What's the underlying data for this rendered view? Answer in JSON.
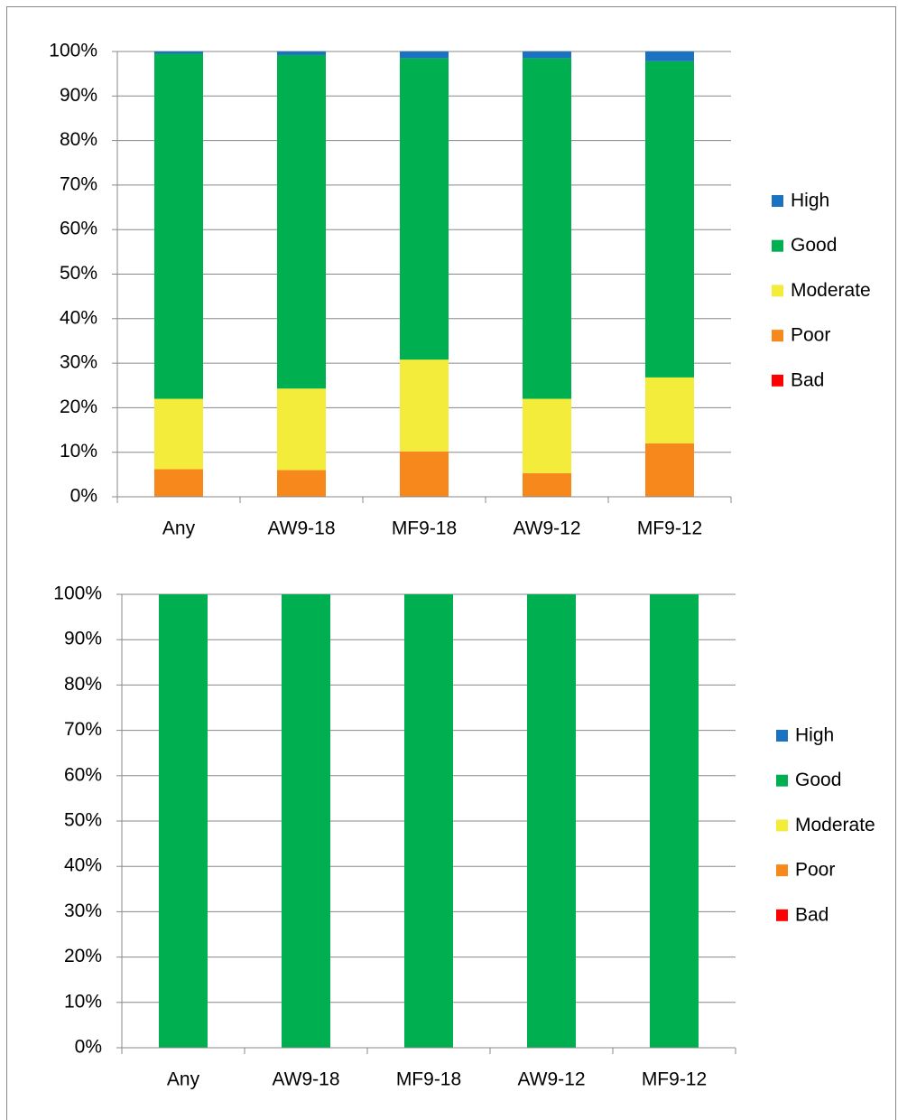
{
  "chart_data": [
    {
      "type": "stacked-bar",
      "categories": [
        "Any",
        "AW9-18",
        "MF9-18",
        "AW9-12",
        "MF9-12"
      ],
      "series": [
        {
          "name": "High",
          "color": "#1a72c0",
          "values": [
            0.5,
            0.8,
            1.5,
            1.5,
            2.2
          ]
        },
        {
          "name": "Good",
          "color": "#00b050",
          "values": [
            77.5,
            74.9,
            67.7,
            76.5,
            71
          ]
        },
        {
          "name": "Moderate",
          "color": "#f4ec3a",
          "values": [
            15.8,
            18.3,
            20.6,
            16.7,
            14.8
          ]
        },
        {
          "name": "Poor",
          "color": "#f7891c",
          "values": [
            6.2,
            6,
            10.2,
            5.3,
            12
          ]
        },
        {
          "name": "Bad",
          "color": "#ff0000",
          "values": [
            0,
            0,
            0,
            0,
            0
          ]
        }
      ],
      "ylim": [
        0,
        100
      ],
      "yticks": [
        {
          "value": 0,
          "label": "0%"
        },
        {
          "value": 10,
          "label": "10%"
        },
        {
          "value": 20,
          "label": "20%"
        },
        {
          "value": 30,
          "label": "30%"
        },
        {
          "value": 40,
          "label": "40%"
        },
        {
          "value": 50,
          "label": "50%"
        },
        {
          "value": 60,
          "label": "60%"
        },
        {
          "value": 70,
          "label": "70%"
        },
        {
          "value": 80,
          "label": "80%"
        },
        {
          "value": 90,
          "label": "90%"
        },
        {
          "value": 100,
          "label": "100%"
        }
      ],
      "grid": true,
      "legend": "right"
    },
    {
      "type": "stacked-bar",
      "categories": [
        "Any",
        "AW9-18",
        "MF9-18",
        "AW9-12",
        "MF9-12"
      ],
      "series": [
        {
          "name": "High",
          "color": "#1a72c0",
          "values": [
            0,
            0,
            0,
            0,
            0
          ]
        },
        {
          "name": "Good",
          "color": "#00b050",
          "values": [
            100,
            100,
            100,
            100,
            100
          ]
        },
        {
          "name": "Moderate",
          "color": "#f4ec3a",
          "values": [
            0,
            0,
            0,
            0,
            0
          ]
        },
        {
          "name": "Poor",
          "color": "#f7891c",
          "values": [
            0,
            0,
            0,
            0,
            0
          ]
        },
        {
          "name": "Bad",
          "color": "#ff0000",
          "values": [
            0,
            0,
            0,
            0,
            0
          ]
        }
      ],
      "ylim": [
        0,
        100
      ],
      "yticks": [
        {
          "value": 0,
          "label": "0%"
        },
        {
          "value": 10,
          "label": "10%"
        },
        {
          "value": 20,
          "label": "20%"
        },
        {
          "value": 30,
          "label": "30%"
        },
        {
          "value": 40,
          "label": "40%"
        },
        {
          "value": 50,
          "label": "50%"
        },
        {
          "value": 60,
          "label": "60%"
        },
        {
          "value": 70,
          "label": "70%"
        },
        {
          "value": 80,
          "label": "80%"
        },
        {
          "value": 90,
          "label": "90%"
        },
        {
          "value": 100,
          "label": "100%"
        }
      ],
      "grid": true,
      "legend": "right"
    }
  ]
}
